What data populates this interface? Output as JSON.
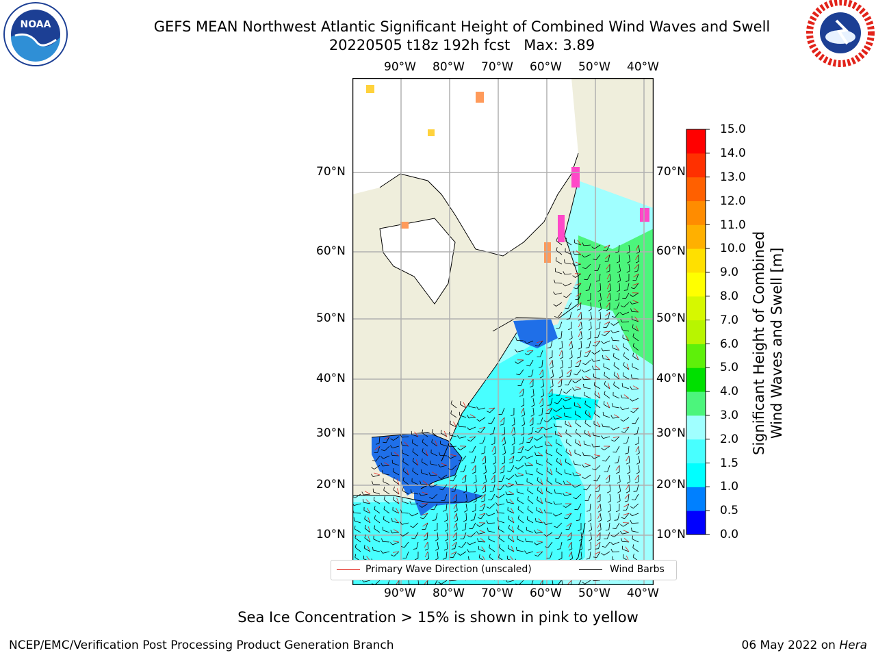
{
  "header": {
    "title_line1": "GEFS MEAN Northwest Atlantic Significant Height of Combined Wind Waves and Swell",
    "title_line2": "20220505 t18z 192h fcst   Max: 3.89"
  },
  "logos": {
    "noaa": {
      "text": "NOAA",
      "icon": "noaa-logo",
      "colors": [
        "#1c3f94",
        "#2f8fd6",
        "#ffffff"
      ]
    },
    "nws": {
      "text": "NATIONAL WEATHER SERVICE",
      "icon": "nws-logo",
      "colors": [
        "#e2231a",
        "#1c3f94",
        "#ffffff"
      ]
    }
  },
  "map": {
    "lon_labels": [
      "90°W",
      "80°W",
      "70°W",
      "60°W",
      "50°W",
      "40°W"
    ],
    "lat_labels": [
      "70°N",
      "60°N",
      "50°N",
      "40°N",
      "30°N",
      "20°N",
      "10°N"
    ],
    "colors": {
      "land": "#efeedc",
      "ice_free_white": "#ffffff",
      "grid": "#b0b0b0",
      "coast": "#000000",
      "wave_arrow": "#e2231a",
      "wind_barb": "#000000",
      "sea_ice": [
        "#ff48c8",
        "#ff9a5a",
        "#ffd23c"
      ]
    }
  },
  "legend": {
    "wave_label": "Primary Wave Direction (unscaled)",
    "wind_label": "Wind Barbs",
    "wave_color": "#e2231a",
    "wind_color": "#000000"
  },
  "colorbar": {
    "label_line1": "Significant Height of Combined",
    "label_line2": "Wind Waves and Swell [m]",
    "ticks": [
      "15.0",
      "14.0",
      "13.0",
      "12.0",
      "11.0",
      "10.0",
      "9.0",
      "8.0",
      "7.0",
      "6.0",
      "5.0",
      "4.0",
      "3.0",
      "2.0",
      "1.5",
      "1.0",
      "0.5",
      "0.0"
    ],
    "colors": [
      "#0000ff",
      "#0080ff",
      "#00ffff",
      "#48ffff",
      "#a0ffff",
      "#4cf57c",
      "#00e000",
      "#5ef00a",
      "#b8f500",
      "#d6f800",
      "#ffff00",
      "#ffe000",
      "#ffb000",
      "#ff8c00",
      "#ff6000",
      "#ff3000",
      "#ff0000"
    ]
  },
  "note": "Sea Ice Concentration > 15% is shown in pink to yellow",
  "footer": {
    "left": "NCEP/EMC/Verification Post Processing Product Generation Branch",
    "date": "06 May 2022 on ",
    "machine": "Hera"
  }
}
